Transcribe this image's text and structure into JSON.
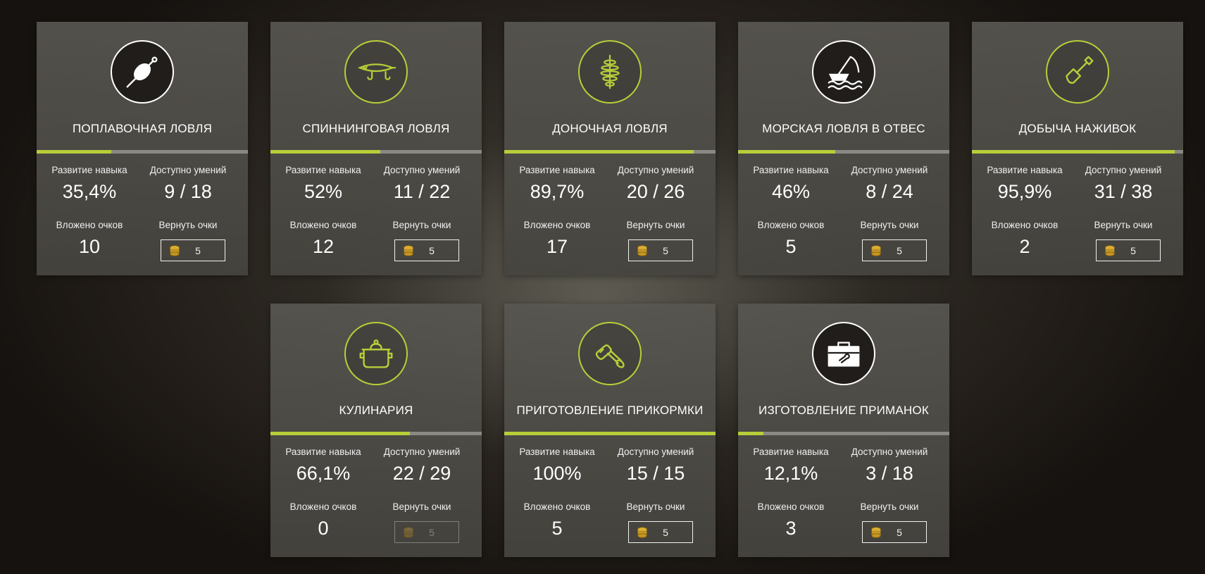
{
  "colors": {
    "accent": "#b8ce39",
    "card": "#56544f",
    "bar_track": "#8a8984"
  },
  "labels": {
    "skill": "Развитие навыка",
    "available": "Доступно умений",
    "invested": "Вложено очков",
    "refund": "Вернуть очки"
  },
  "cards": [
    {
      "title": "ПОПЛАВОЧНАЯ ЛОВЛЯ",
      "icon": "float-bobber-icon",
      "progress": 35.4,
      "skill": "35,4%",
      "available": "9 / 18",
      "invested": "10",
      "refund_cost": "5",
      "refund_enabled": true
    },
    {
      "title": "СПИННИНГОВАЯ ЛОВЛЯ",
      "icon": "spinning-lure-icon",
      "progress": 52,
      "skill": "52%",
      "available": "11 / 22",
      "invested": "12",
      "refund_cost": "5",
      "refund_enabled": true
    },
    {
      "title": "ДОНОЧНАЯ ЛОВЛЯ",
      "icon": "feeder-spring-icon",
      "progress": 89.7,
      "skill": "89,7%",
      "available": "20 / 26",
      "invested": "17",
      "refund_cost": "5",
      "refund_enabled": true
    },
    {
      "title": "МОРСКАЯ ЛОВЛЯ В ОТВЕС",
      "icon": "sea-fishing-boat-icon",
      "progress": 46,
      "skill": "46%",
      "available": "8 / 24",
      "invested": "5",
      "refund_cost": "5",
      "refund_enabled": true
    },
    {
      "title": "ДОБЫЧА НАЖИВОК",
      "icon": "shovel-icon",
      "progress": 95.9,
      "skill": "95,9%",
      "available": "31 / 38",
      "invested": "2",
      "refund_cost": "5",
      "refund_enabled": true
    },
    {
      "title": "КУЛИНАРИЯ",
      "icon": "cooking-pot-icon",
      "progress": 66.1,
      "skill": "66,1%",
      "available": "22 / 29",
      "invested": "0",
      "refund_cost": "5",
      "refund_enabled": false
    },
    {
      "title": "ПРИГОТОВЛЕНИЕ ПРИКОРМКИ",
      "icon": "hand-mixer-icon",
      "progress": 100,
      "skill": "100%",
      "available": "15 / 15",
      "invested": "5",
      "refund_cost": "5",
      "refund_enabled": true
    },
    {
      "title": "ИЗГОТОВЛЕНИЕ ПРИМАНОК",
      "icon": "toolbox-icon",
      "progress": 12.1,
      "skill": "12,1%",
      "available": "3 / 18",
      "invested": "3",
      "refund_cost": "5",
      "refund_enabled": true
    }
  ]
}
